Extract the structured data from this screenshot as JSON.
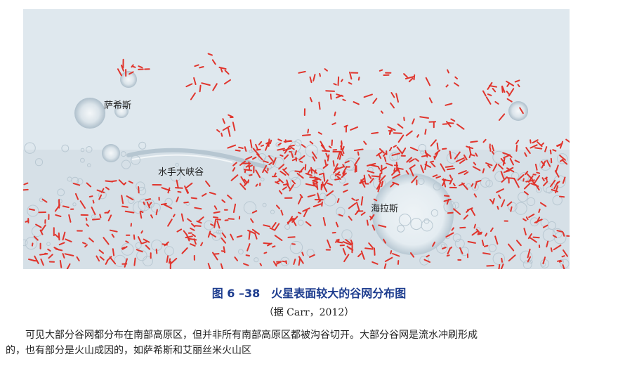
{
  "map": {
    "labels": {
      "tharsis": "萨希斯",
      "valles_marineris": "水手大峡谷",
      "hellas": "海拉斯"
    },
    "colors": {
      "terrain": "#dfe8ee",
      "terrain_shadow": "#c2d0da",
      "valley_network": "#e0342c"
    }
  },
  "caption": {
    "number": "图 6 –38",
    "title": "火星表面较大的谷网分布图",
    "source": "（据 Carr，2012）"
  },
  "body": {
    "line1": "可见大部分谷网都分布在南部高原区，但并非所有南部高原区都被沟谷切开。大部分谷网是流水冲刷形成",
    "line2": "的，也有部分是火山成因的，如萨希斯和艾丽丝米火山区"
  }
}
